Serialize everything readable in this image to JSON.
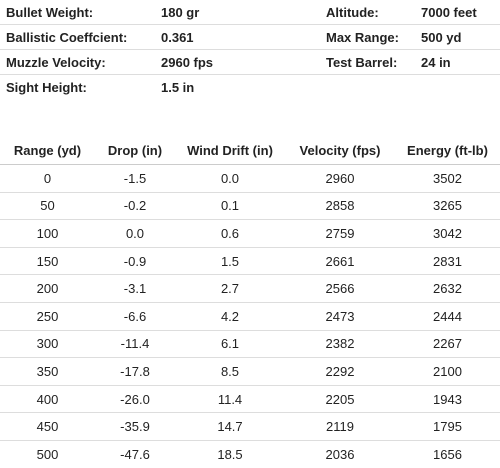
{
  "info": {
    "rows": [
      [
        "Bullet Weight:",
        "180 gr",
        "Altitude:",
        "7000 feet"
      ],
      [
        "Ballistic Coeffcient:",
        "0.361",
        "Max Range:",
        "500 yd"
      ],
      [
        "Muzzle Velocity:",
        "2960 fps",
        "Test Barrel:",
        "24 in"
      ],
      [
        "Sight Height:",
        "1.5 in"
      ]
    ]
  },
  "table": {
    "header": [
      "Range (yd)",
      "Drop (in)",
      "Wind Drift (in)",
      "Velocity (fps)",
      "Energy (ft-lb)"
    ],
    "rows": [
      [
        "0",
        "-1.5",
        "0.0",
        "2960",
        "3502"
      ],
      [
        "50",
        "-0.2",
        "0.1",
        "2858",
        "3265"
      ],
      [
        "100",
        "0.0",
        "0.6",
        "2759",
        "3042"
      ],
      [
        "150",
        "-0.9",
        "1.5",
        "2661",
        "2831"
      ],
      [
        "200",
        "-3.1",
        "2.7",
        "2566",
        "2632"
      ],
      [
        "250",
        "-6.6",
        "4.2",
        "2473",
        "2444"
      ],
      [
        "300",
        "-11.4",
        "6.1",
        "2382",
        "2267"
      ],
      [
        "350",
        "-17.8",
        "8.5",
        "2292",
        "2100"
      ],
      [
        "400",
        "-26.0",
        "11.4",
        "2205",
        "1943"
      ],
      [
        "450",
        "-35.9",
        "14.7",
        "2119",
        "1795"
      ],
      [
        "500",
        "-47.6",
        "18.5",
        "2036",
        "1656"
      ]
    ]
  }
}
